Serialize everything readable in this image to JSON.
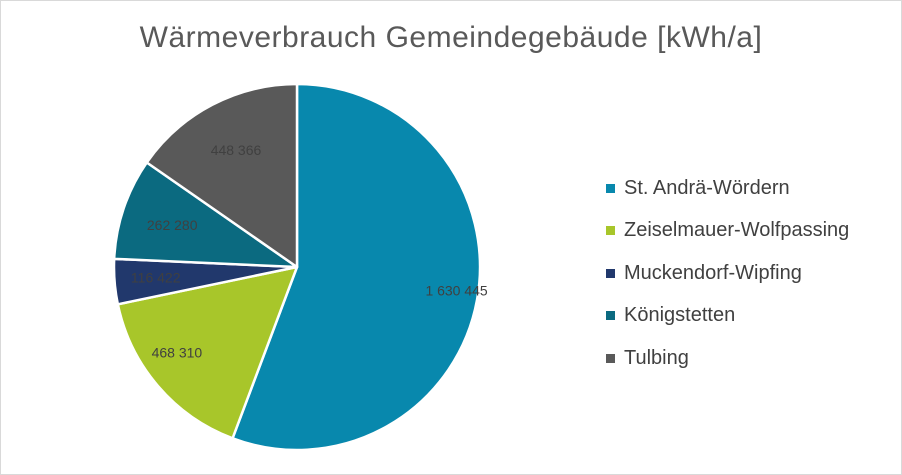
{
  "chart_data": {
    "type": "pie",
    "title": "Wärmeverbrauch Gemeindegebäude  [kWh/a]",
    "categories": [
      "St. Andrä-Wördern",
      "Zeiselmauer-Wolfpassing",
      "Muckendorf-Wipfing",
      "Königstetten",
      "Tulbing"
    ],
    "values": [
      1630445,
      468310,
      116422,
      262280,
      448366
    ],
    "data_labels": [
      "1 630 445",
      "468 310",
      "116 422",
      "262 280",
      "448 366"
    ],
    "colors": [
      "#0888ad",
      "#a8c62a",
      "#21386c",
      "#0b6a80",
      "#595959"
    ],
    "legend_position": "right",
    "start_angle_deg": 0,
    "direction": "clockwise"
  }
}
